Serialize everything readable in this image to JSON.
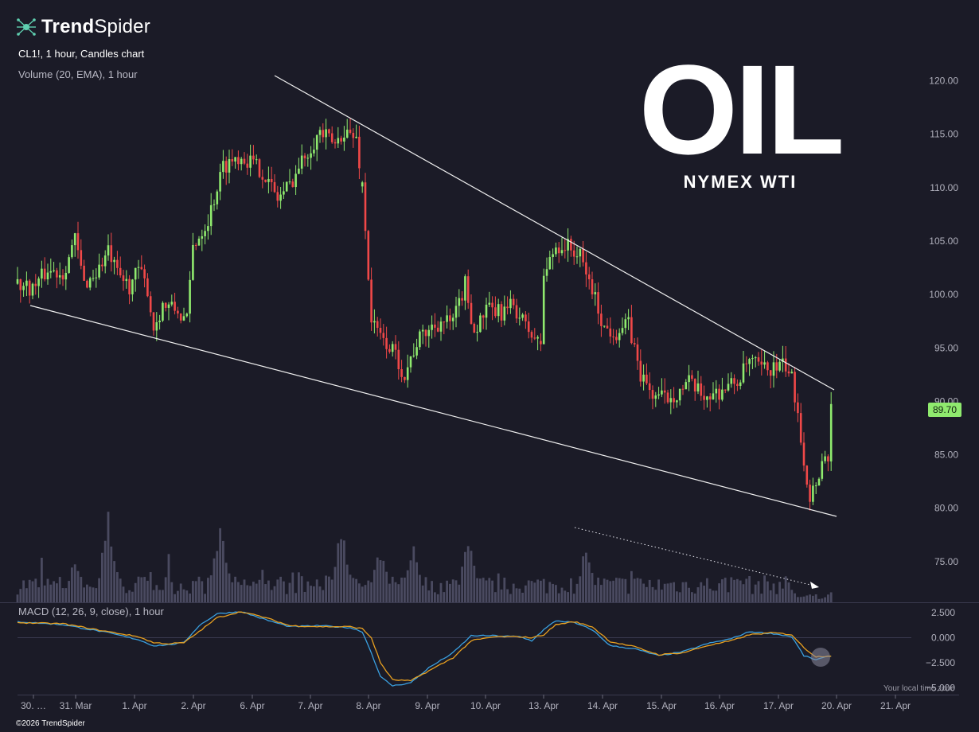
{
  "header": {
    "brand_bold": "Trend",
    "brand_light": "Spider",
    "symbol_line": "CL1!, 1 hour, Candles chart",
    "volume_line": "Volume (20, EMA), 1 hour",
    "macd_line": "MACD (12, 26, 9, close), 1 hour"
  },
  "overlay": {
    "title": "OIL",
    "subtitle": "NYMEX WTI"
  },
  "price_tag": "89.70",
  "footer": "©2026 TrendSpider",
  "timezone_label": "Your local time zone",
  "colors": {
    "background": "#1b1b27",
    "up": "#8fea6e",
    "down": "#f04848",
    "volume": "#4a4a60",
    "macd": "#3aa0e0",
    "signal": "#e8a020",
    "trendline": "#f0f0f0"
  },
  "chart_data": [
    {
      "type": "candlestick",
      "title": "CL1!, 1 hour, Candles chart",
      "x_tick_labels": [
        "30. …",
        "31. Mar",
        "1. Apr",
        "2. Apr",
        "6. Apr",
        "7. Apr",
        "8. Apr",
        "9. Apr",
        "10. Apr",
        "13. Apr",
        "14. Apr",
        "15. Apr",
        "16. Apr",
        "17. Apr",
        "20. Apr",
        "21. Apr"
      ],
      "y_ticks": [
        "120.00",
        "115.00",
        "110.00",
        "105.00",
        "100.00",
        "95.00",
        "90.00",
        "85.00",
        "80.00",
        "75.00"
      ],
      "ylim": [
        71.5,
        121.8
      ],
      "last_price": 89.7,
      "price_path": [
        [
          0,
          101.0
        ],
        [
          5,
          100.6
        ],
        [
          10,
          102.3
        ],
        [
          15,
          102.0
        ],
        [
          19,
          105.2
        ],
        [
          22,
          101.0
        ],
        [
          26,
          102.0
        ],
        [
          30,
          104.0
        ],
        [
          33,
          101.8
        ],
        [
          37,
          100.8
        ],
        [
          40,
          102.3
        ],
        [
          43,
          100.5
        ],
        [
          45,
          96.8
        ],
        [
          48,
          99.0
        ],
        [
          52,
          98.6
        ],
        [
          56,
          97.5
        ],
        [
          58,
          104.5
        ],
        [
          63,
          107.0
        ],
        [
          68,
          112.0
        ],
        [
          73,
          113.0
        ],
        [
          77,
          112.5
        ],
        [
          81,
          111.5
        ],
        [
          86,
          109.0
        ],
        [
          90,
          110.3
        ],
        [
          95,
          113.0
        ],
        [
          100,
          115.2
        ],
        [
          105,
          114.0
        ],
        [
          108,
          115.4
        ],
        [
          112,
          114.5
        ],
        [
          114,
          110.3
        ],
        [
          117,
          97.5
        ],
        [
          120,
          96.0
        ],
        [
          124,
          94.8
        ],
        [
          128,
          92.5
        ],
        [
          132,
          95.5
        ],
        [
          136,
          96.8
        ],
        [
          140,
          97.5
        ],
        [
          144,
          97.3
        ],
        [
          148,
          101.0
        ],
        [
          151,
          96.5
        ],
        [
          155,
          98.5
        ],
        [
          160,
          98.3
        ],
        [
          164,
          99.0
        ],
        [
          168,
          97.0
        ],
        [
          172,
          95.5
        ],
        [
          173,
          95.5
        ],
        [
          174,
          101.8
        ],
        [
          178,
          104.5
        ],
        [
          182,
          104.5
        ],
        [
          186,
          103.5
        ],
        [
          190,
          100.5
        ],
        [
          194,
          96.8
        ],
        [
          198,
          96.5
        ],
        [
          202,
          97.2
        ],
        [
          206,
          92.5
        ],
        [
          210,
          90.6
        ],
        [
          214,
          90.3
        ],
        [
          218,
          90.8
        ],
        [
          222,
          91.7
        ],
        [
          226,
          90.6
        ],
        [
          230,
          90.6
        ],
        [
          234,
          91.3
        ],
        [
          238,
          91.8
        ],
        [
          242,
          93.8
        ],
        [
          246,
          93.0
        ],
        [
          250,
          93.1
        ],
        [
          254,
          93.3
        ],
        [
          256,
          92.0
        ],
        [
          258,
          89.2
        ],
        [
          260,
          84.5
        ],
        [
          262,
          81.0
        ],
        [
          264,
          82.5
        ],
        [
          266,
          84.3
        ],
        [
          268,
          85.0
        ],
        [
          269,
          89.7
        ]
      ],
      "gaps_after_index": [
        113,
        172,
        269
      ]
    },
    {
      "type": "bar",
      "title": "Volume (20, EMA), 1 hour",
      "description_values": "relative hourly volume bars, heights as fraction of panel max",
      "peaks": [
        [
          19,
          0.5
        ],
        [
          30,
          0.95
        ],
        [
          67,
          0.88
        ],
        [
          107,
          0.9
        ],
        [
          120,
          0.6
        ],
        [
          131,
          0.72
        ],
        [
          149,
          0.75
        ],
        [
          188,
          0.68
        ],
        [
          238,
          0.25
        ],
        [
          269,
          0.05
        ]
      ]
    },
    {
      "type": "line",
      "title": "MACD (12, 26, 9, close), 1 hour",
      "y_ticks": [
        "2.500",
        "0.000",
        "−2.500",
        "−5.000"
      ],
      "ylim": [
        -5.4,
        3.1
      ],
      "series": [
        {
          "name": "MACD",
          "values": [
            [
              0,
              1.6
            ],
            [
              15,
              1.3
            ],
            [
              30,
              0.5
            ],
            [
              40,
              -0.2
            ],
            [
              45,
              -0.8
            ],
            [
              50,
              -0.7
            ],
            [
              55,
              -0.5
            ],
            [
              60,
              1.2
            ],
            [
              66,
              2.4
            ],
            [
              74,
              2.6
            ],
            [
              82,
              1.8
            ],
            [
              90,
              1.1
            ],
            [
              100,
              1.2
            ],
            [
              110,
              1.0
            ],
            [
              114,
              0.6
            ],
            [
              117,
              -1.5
            ],
            [
              120,
              -3.9
            ],
            [
              124,
              -4.8
            ],
            [
              130,
              -4.5
            ],
            [
              136,
              -3.0
            ],
            [
              144,
              -1.5
            ],
            [
              150,
              0.2
            ],
            [
              158,
              0.2
            ],
            [
              166,
              0.1
            ],
            [
              170,
              -0.3
            ],
            [
              174,
              0.8
            ],
            [
              178,
              1.7
            ],
            [
              184,
              1.5
            ],
            [
              190,
              0.8
            ],
            [
              196,
              -0.8
            ],
            [
              204,
              -1.1
            ],
            [
              212,
              -1.8
            ],
            [
              220,
              -1.4
            ],
            [
              228,
              -0.6
            ],
            [
              236,
              -0.1
            ],
            [
              242,
              0.6
            ],
            [
              250,
              0.4
            ],
            [
              256,
              0.1
            ],
            [
              260,
              -1.8
            ],
            [
              264,
              -2.2
            ],
            [
              269,
              -1.8
            ]
          ]
        },
        {
          "name": "Signal",
          "values": [
            [
              0,
              1.5
            ],
            [
              15,
              1.4
            ],
            [
              30,
              0.6
            ],
            [
              40,
              0.1
            ],
            [
              45,
              -0.5
            ],
            [
              50,
              -0.6
            ],
            [
              55,
              -0.5
            ],
            [
              60,
              0.6
            ],
            [
              66,
              2.0
            ],
            [
              74,
              2.6
            ],
            [
              82,
              2.0
            ],
            [
              90,
              1.2
            ],
            [
              100,
              1.1
            ],
            [
              110,
              1.1
            ],
            [
              114,
              0.9
            ],
            [
              117,
              0.0
            ],
            [
              120,
              -2.5
            ],
            [
              124,
              -4.2
            ],
            [
              130,
              -4.3
            ],
            [
              136,
              -3.3
            ],
            [
              144,
              -2.0
            ],
            [
              150,
              -0.3
            ],
            [
              158,
              0.1
            ],
            [
              166,
              0.1
            ],
            [
              170,
              0.0
            ],
            [
              174,
              0.3
            ],
            [
              178,
              1.3
            ],
            [
              184,
              1.6
            ],
            [
              190,
              1.1
            ],
            [
              196,
              -0.4
            ],
            [
              204,
              -0.9
            ],
            [
              212,
              -1.7
            ],
            [
              220,
              -1.5
            ],
            [
              228,
              -0.8
            ],
            [
              236,
              -0.3
            ],
            [
              242,
              0.3
            ],
            [
              250,
              0.5
            ],
            [
              256,
              0.3
            ],
            [
              260,
              -1.0
            ],
            [
              264,
              -1.9
            ],
            [
              269,
              -1.8
            ]
          ]
        }
      ]
    }
  ]
}
